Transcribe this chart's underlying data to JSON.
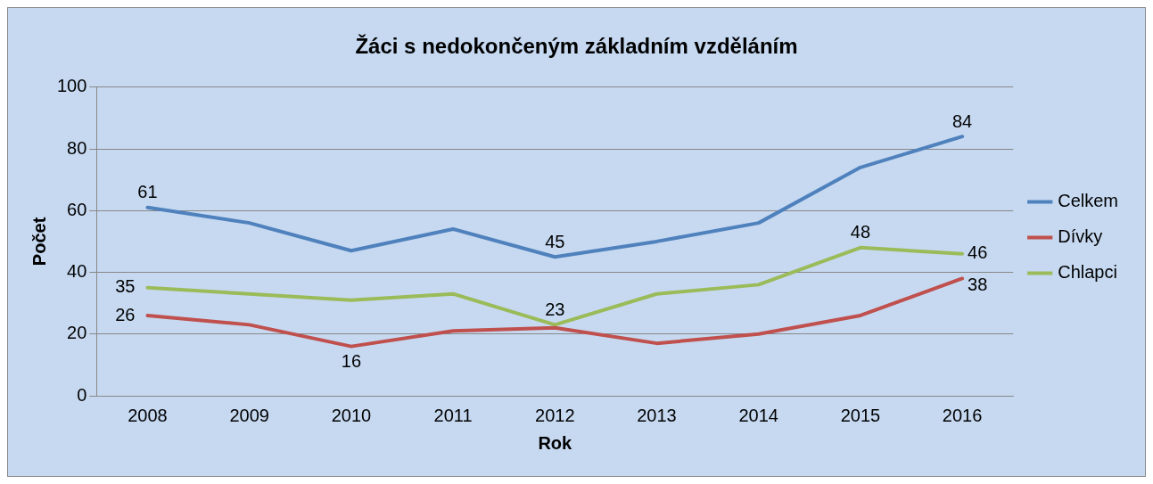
{
  "chart_data": {
    "type": "line",
    "title": "Žáci s nedokončeným základním vzděláním",
    "xlabel": "Rok",
    "ylabel": "Počet",
    "categories": [
      "2008",
      "2009",
      "2010",
      "2011",
      "2012",
      "2013",
      "2014",
      "2015",
      "2016"
    ],
    "series": [
      {
        "name": "Celkem",
        "color": "#4f81bd",
        "values": [
          61,
          56,
          47,
          54,
          45,
          50,
          56,
          74,
          84
        ],
        "value_labels": [
          "61",
          null,
          null,
          null,
          "45",
          null,
          null,
          null,
          "84"
        ]
      },
      {
        "name": "Dívky",
        "color": "#c0504d",
        "values": [
          26,
          23,
          16,
          21,
          22,
          17,
          20,
          26,
          38
        ],
        "value_labels": [
          "26",
          null,
          "16",
          null,
          null,
          null,
          null,
          null,
          "38"
        ]
      },
      {
        "name": "Chlapci",
        "color": "#9bbb59",
        "values": [
          35,
          33,
          31,
          33,
          23,
          33,
          36,
          48,
          46
        ],
        "value_labels": [
          "35",
          null,
          null,
          null,
          "23",
          null,
          null,
          "48",
          "46"
        ]
      }
    ],
    "ylim": [
      0,
      100
    ],
    "yticks": [
      0,
      20,
      40,
      60,
      80,
      100
    ],
    "grid": "y",
    "legend": "right",
    "marker": "none",
    "line_style": "solid"
  }
}
